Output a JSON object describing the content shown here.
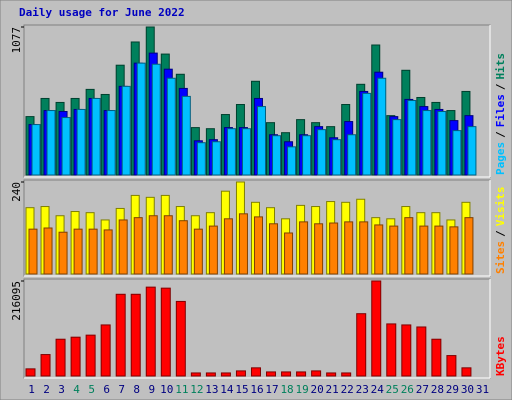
{
  "chart_data": [
    {
      "type": "bar",
      "title": "Daily usage for June 2022",
      "title_color": "#0000c0",
      "legend_separator": "/",
      "ylim": [
        0,
        1077
      ],
      "yticks": [
        1077
      ],
      "series": [
        {
          "name": "Hits",
          "color": "#00805c",
          "values": [
            425,
            557,
            528,
            557,
            623,
            586,
            799,
            968,
            1077,
            880,
            733,
            345,
            337,
            440,
            513,
            682,
            381,
            308,
            403,
            381,
            352,
            513,
            660,
            946,
            432,
            762,
            564,
            528,
            469,
            608,
            0
          ]
        },
        {
          "name": "Files",
          "color": "#0000ff",
          "values": [
            367,
            469,
            462,
            477,
            557,
            469,
            645,
            814,
            887,
            770,
            630,
            249,
            257,
            345,
            345,
            557,
            293,
            242,
            293,
            352,
            271,
            389,
            608,
            748,
            425,
            550,
            498,
            477,
            396,
            432,
            0
          ]
        },
        {
          "name": "Pages",
          "color": "#00c0ff",
          "values": [
            367,
            469,
            418,
            477,
            557,
            469,
            645,
            814,
            806,
            704,
            572,
            235,
            242,
            337,
            337,
            498,
            286,
            205,
            286,
            330,
            257,
            293,
            594,
            704,
            403,
            542,
            469,
            462,
            323,
            352,
            0
          ]
        }
      ]
    },
    {
      "type": "bar",
      "legend_separator": "/",
      "ylim": [
        0,
        240
      ],
      "yticks": [
        240
      ],
      "series": [
        {
          "name": "Visits",
          "color": "#ffff00",
          "values": [
            173,
            176,
            152,
            163,
            160,
            141,
            171,
            205,
            200,
            205,
            176,
            152,
            160,
            216,
            240,
            187,
            173,
            144,
            179,
            176,
            189,
            187,
            195,
            147,
            144,
            176,
            160,
            160,
            141,
            187,
            0
          ]
        },
        {
          "name": "Sites",
          "color": "#ff8000",
          "values": [
            117,
            120,
            109,
            117,
            117,
            115,
            141,
            147,
            152,
            152,
            139,
            117,
            125,
            144,
            157,
            149,
            131,
            107,
            136,
            131,
            133,
            136,
            136,
            128,
            125,
            147,
            125,
            125,
            123,
            147,
            0
          ]
        }
      ]
    },
    {
      "type": "bar",
      "ylim": [
        0,
        216095
      ],
      "yticks": [
        216095
      ],
      "categories": [
        "1",
        "2",
        "3",
        "4",
        "5",
        "6",
        "7",
        "8",
        "9",
        "10",
        "11",
        "12",
        "13",
        "14",
        "15",
        "16",
        "17",
        "18",
        "19",
        "20",
        "21",
        "22",
        "23",
        "24",
        "25",
        "26",
        "27",
        "28",
        "29",
        "30",
        "31"
      ],
      "category_colors": [
        "#000080",
        "#000080",
        "#000080",
        "#00805c",
        "#00805c",
        "#000080",
        "#000080",
        "#000080",
        "#000080",
        "#000080",
        "#00805c",
        "#00805c",
        "#000080",
        "#000080",
        "#000080",
        "#000080",
        "#000080",
        "#00805c",
        "#00805c",
        "#000080",
        "#000080",
        "#000080",
        "#000080",
        "#000080",
        "#00805c",
        "#00805c",
        "#000080",
        "#000080",
        "#000080",
        "#000080",
        "#000080"
      ],
      "series": [
        {
          "name": "KBytes",
          "color": "#ff0000",
          "values": [
            16265,
            48795,
            83650,
            88297,
            92945,
            116180,
            185890,
            185890,
            202150,
            199830,
            169620,
            6970,
            6970,
            6970,
            11618,
            18589,
            9294,
            9294,
            9294,
            11618,
            6970,
            6970,
            141740,
            216095,
            118500,
            116180,
            111530,
            83650,
            46470,
            18590,
            0
          ]
        }
      ]
    }
  ]
}
